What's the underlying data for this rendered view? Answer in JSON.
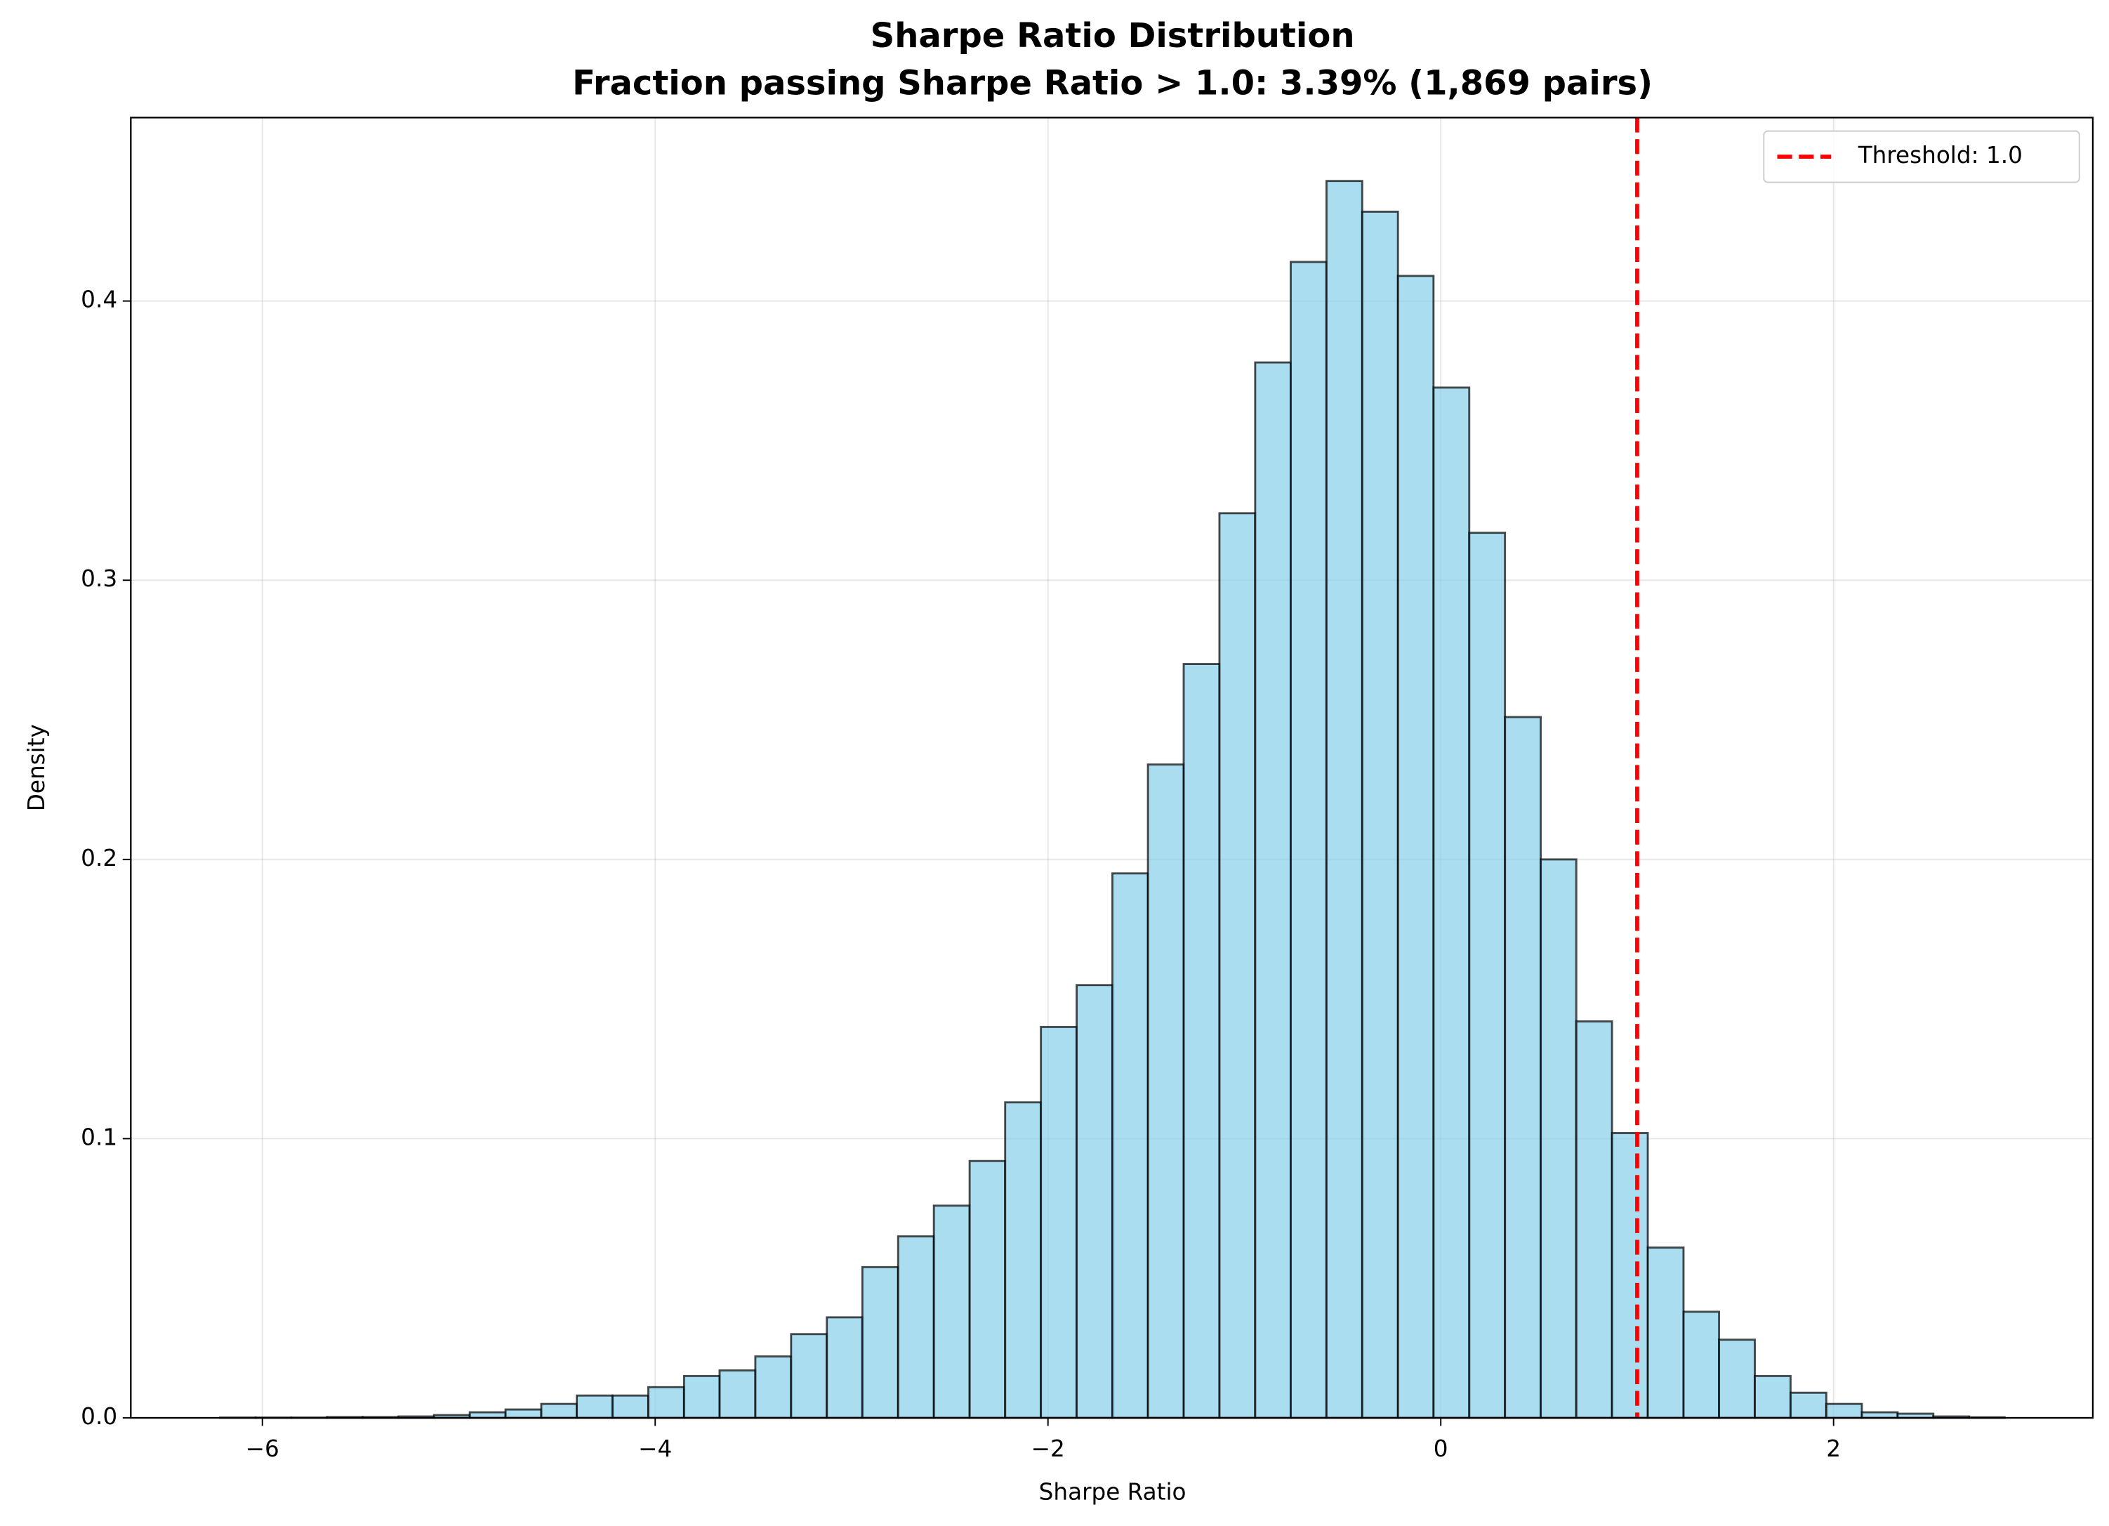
{
  "chart_data": {
    "type": "histogram",
    "title": [
      "Sharpe Ratio Distribution",
      "Fraction passing Sharpe Ratio > 1.0: 3.39% (1,869 pairs)"
    ],
    "xlabel": "Sharpe Ratio",
    "ylabel": "Density",
    "bins": [
      -6.216,
      -6.034,
      -5.853,
      -5.671,
      -5.489,
      -5.307,
      -5.126,
      -4.944,
      -4.762,
      -4.58,
      -4.399,
      -4.217,
      -4.035,
      -3.853,
      -3.672,
      -3.49,
      -3.308,
      -3.126,
      -2.945,
      -2.763,
      -2.581,
      -2.399,
      -2.218,
      -2.036,
      -1.854,
      -1.672,
      -1.491,
      -1.309,
      -1.127,
      -0.945,
      -0.764,
      -0.582,
      -0.4,
      -0.218,
      -0.037,
      0.145,
      0.327,
      0.509,
      0.69,
      0.872,
      1.054,
      1.236,
      1.417,
      1.599,
      1.781,
      1.963,
      2.144,
      2.326,
      2.508,
      2.69,
      2.871
    ],
    "values": [
      0.0001,
      0.0001,
      0.0001,
      0.0003,
      0.0003,
      0.0005,
      0.001,
      0.002,
      0.003,
      0.005,
      0.008,
      0.008,
      0.011,
      0.015,
      0.017,
      0.022,
      0.03,
      0.036,
      0.054,
      0.065,
      0.076,
      0.092,
      0.113,
      0.14,
      0.155,
      0.195,
      0.234,
      0.27,
      0.324,
      0.378,
      0.414,
      0.443,
      0.432,
      0.409,
      0.369,
      0.317,
      0.251,
      0.2,
      0.142,
      0.102,
      0.061,
      0.038,
      0.028,
      0.015,
      0.009,
      0.005,
      0.002,
      0.0015,
      0.0005,
      0.0002
    ],
    "color": "#87ceeb",
    "edgecolor": "#000000",
    "xlim": [
      -6.67,
      3.32
    ],
    "ylim": [
      0,
      0.4657
    ],
    "xticks": [
      {
        "value": -6,
        "label": "−6"
      },
      {
        "value": -4,
        "label": "−4"
      },
      {
        "value": -2,
        "label": "−2"
      },
      0,
      2
    ],
    "yticks": [
      {
        "value": 0,
        "label": "0.0"
      },
      0.1,
      0.2,
      0.3,
      0.4
    ],
    "grid": true,
    "threshold": {
      "value": 1,
      "label": "Threshold: 1.0",
      "color": "#ff0000"
    },
    "legend": "upper right"
  }
}
